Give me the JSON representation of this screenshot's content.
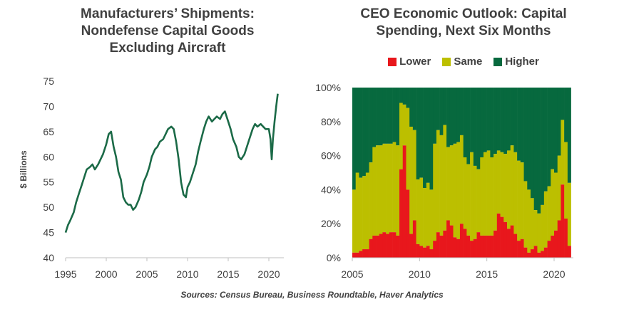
{
  "charts": {
    "left": {
      "title": "Manufacturers’ Shipments:\nNondefense Capital Goods\nExcluding Aircraft",
      "ylabel": "$ Billions",
      "color": "#1b6a47"
    },
    "right": {
      "title": "CEO Economic Outlook: Capital\nSpending, Next Six Months",
      "colors": {
        "lower": "#e8171c",
        "same": "#bcbf00",
        "higher": "#07693e"
      },
      "legend": [
        "Lower",
        "Same",
        "Higher"
      ]
    }
  },
  "source": "Sources: Census Bureau, Business Roundtable, Haver Analytics",
  "chart_data": [
    {
      "type": "line",
      "title": "Manufacturers’ Shipments: Nondefense Capital Goods Excluding Aircraft",
      "ylabel": "$ Billions",
      "xlabel": "",
      "xlim": [
        1995,
        2021.3
      ],
      "ylim": [
        40,
        75
      ],
      "xticks": [
        1995,
        2000,
        2005,
        2010,
        2015,
        2020
      ],
      "yticks": [
        40,
        45,
        50,
        55,
        60,
        65,
        70,
        75
      ],
      "grid": false,
      "series": [
        {
          "x": [
            1995.0,
            1995.3,
            1995.6,
            1996.0,
            1996.3,
            1996.6,
            1997.0,
            1997.3,
            1997.6,
            1998.0,
            1998.3,
            1998.6,
            1999.0,
            1999.3,
            1999.6,
            2000.0,
            2000.3,
            2000.6,
            2000.9,
            2001.2,
            2001.5,
            2001.8,
            2002.1,
            2002.4,
            2002.7,
            2003.0,
            2003.3,
            2003.6,
            2004.0,
            2004.3,
            2004.6,
            2005.0,
            2005.3,
            2005.6,
            2006.0,
            2006.3,
            2006.6,
            2007.0,
            2007.3,
            2007.6,
            2008.0,
            2008.3,
            2008.6,
            2008.9,
            2009.2,
            2009.5,
            2009.8,
            2010.0,
            2010.3,
            2010.6,
            2011.0,
            2011.3,
            2011.6,
            2012.0,
            2012.3,
            2012.6,
            2013.0,
            2013.3,
            2013.6,
            2014.0,
            2014.3,
            2014.6,
            2015.0,
            2015.3,
            2015.6,
            2016.0,
            2016.3,
            2016.6,
            2017.0,
            2017.3,
            2017.6,
            2018.0,
            2018.3,
            2018.6,
            2019.0,
            2019.3,
            2019.6,
            2020.0,
            2020.2,
            2020.35,
            2020.5,
            2020.7,
            2020.9,
            2021.1
          ],
          "y": [
            45.0,
            46.5,
            47.5,
            49.0,
            51.0,
            52.5,
            54.5,
            56.0,
            57.5,
            58.0,
            58.5,
            57.5,
            58.5,
            59.5,
            60.5,
            62.5,
            64.5,
            65.0,
            62.0,
            60.0,
            57.0,
            55.5,
            52.0,
            51.0,
            50.5,
            50.5,
            49.5,
            50.0,
            51.5,
            53.0,
            55.0,
            56.5,
            58.0,
            60.0,
            61.5,
            62.0,
            63.0,
            63.5,
            64.5,
            65.5,
            66.0,
            65.5,
            63.0,
            59.5,
            55.0,
            52.5,
            52.0,
            54.0,
            55.0,
            56.5,
            58.5,
            61.0,
            63.0,
            65.5,
            67.0,
            68.0,
            67.0,
            67.5,
            68.0,
            67.5,
            68.5,
            69.0,
            67.0,
            65.5,
            63.5,
            62.0,
            60.0,
            59.5,
            60.5,
            62.0,
            63.5,
            65.5,
            66.5,
            66.0,
            66.5,
            66.0,
            65.5,
            65.5,
            63.5,
            59.5,
            63.5,
            67.0,
            70.0,
            72.5
          ]
        }
      ]
    },
    {
      "type": "bar",
      "stacked": true,
      "title": "CEO Economic Outlook: Capital Spending, Next Six Months",
      "xlabel": "",
      "ylabel": "",
      "xlim": [
        2005,
        2021.3
      ],
      "ylim": [
        0,
        100
      ],
      "xticks": [
        2005,
        2010,
        2015,
        2020
      ],
      "yticks": [
        "0%",
        "20%",
        "40%",
        "60%",
        "80%",
        "100%"
      ],
      "legend_position": "top",
      "grid": false,
      "series_names": [
        "Lower",
        "Same",
        "Higher"
      ],
      "quarters": [
        2005.0,
        2005.25,
        2005.5,
        2005.75,
        2006.0,
        2006.25,
        2006.5,
        2006.75,
        2007.0,
        2007.25,
        2007.5,
        2007.75,
        2008.0,
        2008.25,
        2008.5,
        2008.75,
        2009.0,
        2009.25,
        2009.5,
        2009.75,
        2010.0,
        2010.25,
        2010.5,
        2010.75,
        2011.0,
        2011.25,
        2011.5,
        2011.75,
        2012.0,
        2012.25,
        2012.5,
        2012.75,
        2013.0,
        2013.25,
        2013.5,
        2013.75,
        2014.0,
        2014.25,
        2014.5,
        2014.75,
        2015.0,
        2015.25,
        2015.5,
        2015.75,
        2016.0,
        2016.25,
        2016.5,
        2016.75,
        2017.0,
        2017.25,
        2017.5,
        2017.75,
        2018.0,
        2018.25,
        2018.5,
        2018.75,
        2019.0,
        2019.25,
        2019.5,
        2019.75,
        2020.0,
        2020.25,
        2020.5,
        2020.75,
        2021.0
      ],
      "lower": [
        3,
        3,
        4,
        5,
        5,
        11,
        13,
        13,
        14,
        15,
        14,
        15,
        15,
        13,
        52,
        66,
        40,
        14,
        22,
        8,
        7,
        6,
        7,
        5,
        10,
        15,
        13,
        16,
        22,
        19,
        12,
        11,
        20,
        17,
        13,
        10,
        11,
        15,
        13,
        13,
        13,
        13,
        16,
        26,
        24,
        21,
        17,
        19,
        14,
        10,
        11,
        6,
        3,
        5,
        7,
        3,
        4,
        6,
        10,
        13,
        16,
        22,
        43,
        23,
        7
      ],
      "same": [
        37,
        47,
        43,
        43,
        45,
        45,
        52,
        53,
        52,
        52,
        53,
        52,
        53,
        53,
        39,
        24,
        48,
        63,
        53,
        38,
        40,
        35,
        37,
        35,
        57,
        60,
        59,
        62,
        43,
        47,
        55,
        57,
        52,
        42,
        42,
        52,
        43,
        37,
        46,
        49,
        50,
        46,
        45,
        37,
        38,
        40,
        46,
        47,
        48,
        47,
        45,
        39,
        37,
        30,
        21,
        23,
        27,
        33,
        32,
        39,
        34,
        38,
        38,
        45,
        37
      ]
    }
  ]
}
